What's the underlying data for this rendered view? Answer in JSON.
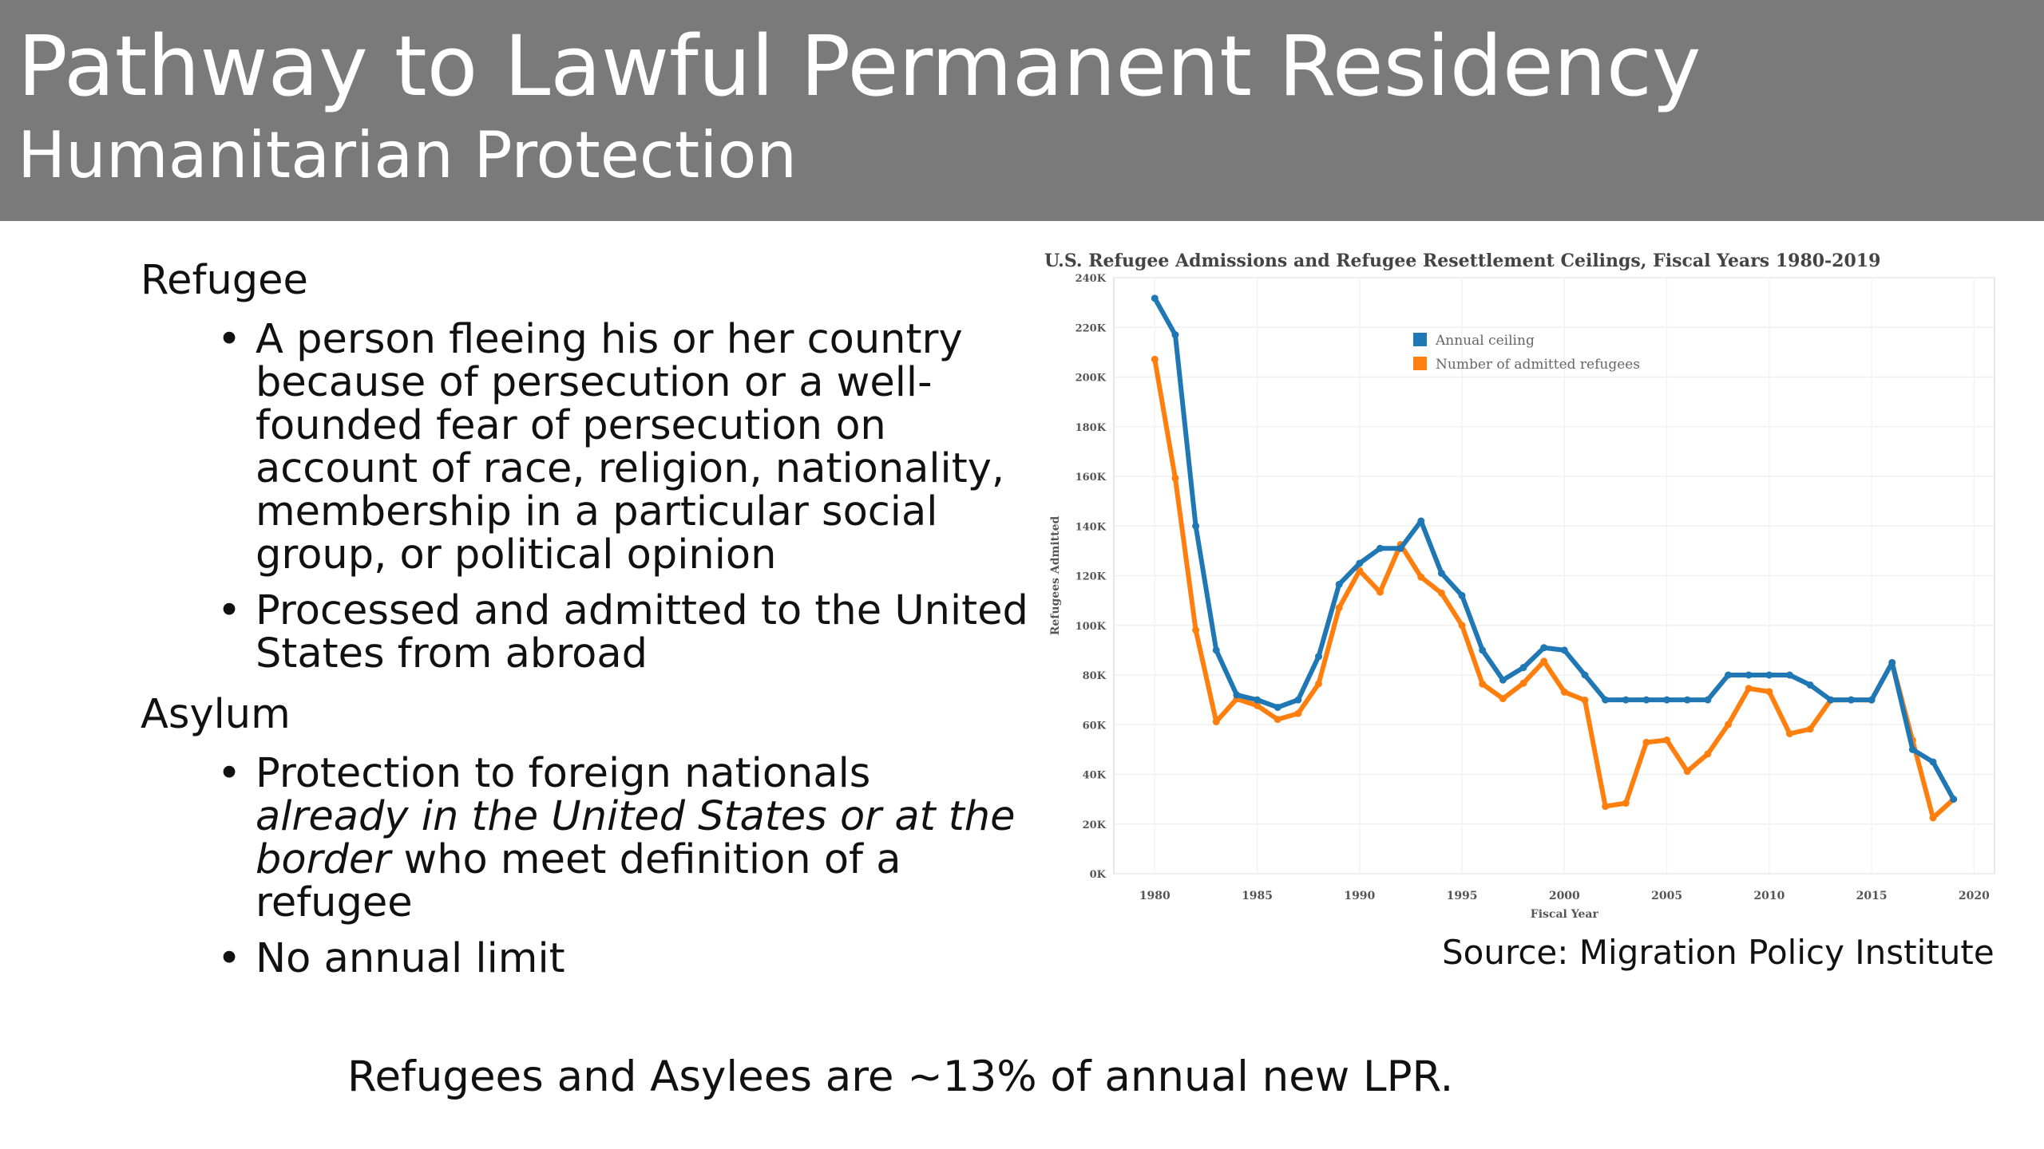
{
  "header": {
    "title": "Pathway to Lawful Permanent Residency",
    "subtitle": "Humanitarian Protection"
  },
  "refugee": {
    "heading": "Refugee",
    "bullets": [
      {
        "text": "A person fleeing his or her country because of persecution or a well-founded fear of persecution on account of race, religion, nationality, membership in a particular social group, or political opinion"
      },
      {
        "text": "Processed and admitted to the United States from abroad"
      }
    ]
  },
  "asylum": {
    "heading": "Asylum",
    "bullets": [
      {
        "text_before": "Protection to foreign nationals ",
        "text_italic": "already in the United States or at the border",
        "text_after": " who meet definition of a refugee"
      },
      {
        "text": "No annual limit"
      }
    ]
  },
  "bullet_char": "•",
  "source": "Source: Migration Policy Institute",
  "footer": "Refugees and Asylees are ~13% of annual new LPR.",
  "chart_data": {
    "type": "line",
    "title": "U.S. Refugee Admissions and Refugee Resettlement Ceilings, Fiscal Years 1980-2019",
    "xlabel": "Fiscal Year",
    "ylabel": "Refugees Admitted",
    "xlim": [
      1978,
      2021
    ],
    "ylim": [
      0,
      240000
    ],
    "xticks": [
      1980,
      1985,
      1990,
      1995,
      2000,
      2005,
      2010,
      2015,
      2020
    ],
    "yticks": [
      0,
      20000,
      40000,
      60000,
      80000,
      100000,
      120000,
      140000,
      160000,
      180000,
      200000,
      220000,
      240000
    ],
    "ytick_labels": [
      "0K",
      "20K",
      "40K",
      "60K",
      "80K",
      "100K",
      "120K",
      "140K",
      "160K",
      "180K",
      "200K",
      "220K",
      "240K"
    ],
    "grid": true,
    "legend_position": "top-center",
    "x": [
      1980,
      1981,
      1982,
      1983,
      1984,
      1985,
      1986,
      1987,
      1988,
      1989,
      1990,
      1991,
      1992,
      1993,
      1994,
      1995,
      1996,
      1997,
      1998,
      1999,
      2000,
      2001,
      2002,
      2003,
      2004,
      2005,
      2006,
      2007,
      2008,
      2009,
      2010,
      2011,
      2012,
      2013,
      2014,
      2015,
      2016,
      2017,
      2018,
      2019
    ],
    "series": [
      {
        "name": "Annual ceiling",
        "color": "#1f77b4",
        "values": [
          231700,
          217000,
          140000,
          90000,
          72000,
          70000,
          67000,
          70000,
          87500,
          116500,
          125000,
          131000,
          131000,
          142000,
          121000,
          112000,
          90000,
          78000,
          83000,
          91000,
          90000,
          80000,
          70000,
          70000,
          70000,
          70000,
          70000,
          70000,
          80000,
          80000,
          80000,
          80000,
          76000,
          70000,
          70000,
          70000,
          85000,
          50000,
          45000,
          30000
        ]
      },
      {
        "name": "Number of admitted refugees",
        "color": "#ff7f0e",
        "values": [
          207116,
          159252,
          98096,
          61218,
          70393,
          67704,
          62146,
          64528,
          76483,
          107070,
          122066,
          113389,
          132531,
          119448,
          112981,
          99974,
          76403,
          70488,
          76712,
          85525,
          73147,
          69886,
          27131,
          28422,
          52873,
          53813,
          41223,
          48218,
          60108,
          74602,
          73311,
          56384,
          58238,
          69926,
          69987,
          69933,
          84994,
          53716,
          22491,
          30000
        ]
      }
    ]
  }
}
